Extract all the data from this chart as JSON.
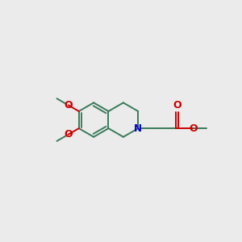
{
  "background_color": "#ebebeb",
  "bond_color": "#3a7a5a",
  "nitrogen_color": "#0000cc",
  "oxygen_color": "#cc0000",
  "lw": 1.4,
  "figsize": [
    3.0,
    3.0
  ],
  "dpi": 100,
  "xlim": [
    0,
    10
  ],
  "ylim": [
    0,
    10
  ]
}
